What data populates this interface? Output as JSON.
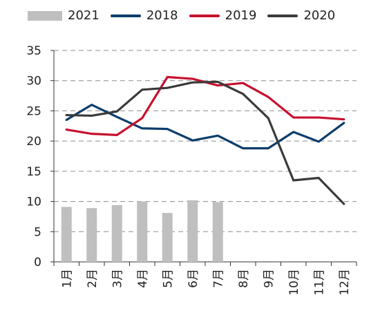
{
  "chart_data": {
    "type": "bar",
    "categories": [
      "1月",
      "2月",
      "3月",
      "4月",
      "5月",
      "6月",
      "7月",
      "8月",
      "9月",
      "10月",
      "11月",
      "12月"
    ],
    "ylim": [
      0,
      35
    ],
    "yticks": [
      0,
      5,
      10,
      15,
      20,
      25,
      30,
      35
    ],
    "grid": "horizontal dashed",
    "legend_position": "top",
    "series": [
      {
        "name": "2021",
        "type": "bar",
        "color": "#bfbfbf",
        "values": [
          9.1,
          8.9,
          9.4,
          10.0,
          8.1,
          10.2,
          9.9,
          null,
          null,
          null,
          null,
          null
        ]
      },
      {
        "name": "2018",
        "type": "line",
        "color": "#0b3d6b",
        "values": [
          23.5,
          26.0,
          24.0,
          22.1,
          22.0,
          20.1,
          20.9,
          18.8,
          18.8,
          21.5,
          19.9,
          23.0
        ]
      },
      {
        "name": "2019",
        "type": "line",
        "color": "#c8102e",
        "values": [
          21.9,
          21.2,
          21.0,
          23.8,
          30.6,
          30.3,
          29.2,
          29.6,
          27.3,
          23.9,
          23.9,
          23.6
        ]
      },
      {
        "name": "2020",
        "type": "line",
        "color": "#3a3a3a",
        "values": [
          24.3,
          24.2,
          24.9,
          28.5,
          28.8,
          29.7,
          29.8,
          27.8,
          23.8,
          13.5,
          13.9,
          9.6
        ]
      }
    ]
  }
}
